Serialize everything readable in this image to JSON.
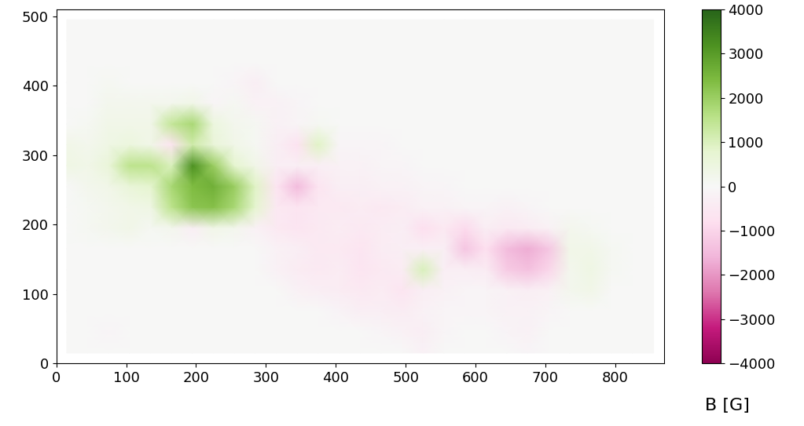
{
  "chart_data": {
    "type": "heatmap",
    "color": "PiYG",
    "x": [
      15,
      45,
      75,
      105,
      135,
      165,
      195,
      225,
      255,
      285,
      315,
      345,
      375,
      405,
      435,
      465,
      495,
      525,
      555,
      585,
      615,
      645,
      675,
      705,
      735,
      765,
      795,
      825,
      855
    ],
    "y": [
      15,
      45,
      75,
      105,
      135,
      165,
      195,
      225,
      255,
      285,
      315,
      345,
      375,
      405,
      435,
      465,
      495
    ],
    "cells": [
      [
        0,
        0,
        0,
        0,
        0,
        0,
        0,
        0,
        0,
        0,
        0,
        0,
        0,
        0,
        0,
        0,
        0,
        -200,
        0,
        0,
        0,
        0,
        -100,
        0,
        0,
        0,
        0,
        0,
        0
      ],
      [
        0,
        0,
        -100,
        0,
        0,
        0,
        0,
        0,
        0,
        0,
        0,
        0,
        0,
        0,
        0,
        -100,
        -200,
        -300,
        -100,
        0,
        0,
        -150,
        -200,
        0,
        0,
        0,
        0,
        0,
        0
      ],
      [
        0,
        0,
        0,
        0,
        0,
        0,
        0,
        0,
        0,
        0,
        0,
        0,
        0,
        -150,
        -300,
        -300,
        -400,
        -200,
        -100,
        -100,
        -100,
        -200,
        -200,
        -100,
        0,
        0,
        0,
        0,
        0
      ],
      [
        0,
        0,
        0,
        0,
        0,
        0,
        0,
        0,
        0,
        0,
        0,
        -200,
        -300,
        -400,
        -500,
        -400,
        -600,
        -300,
        -200,
        -100,
        -100,
        -200,
        -300,
        -200,
        200,
        300,
        0,
        0,
        0
      ],
      [
        0,
        0,
        0,
        0,
        0,
        0,
        0,
        0,
        0,
        0,
        -200,
        -400,
        -500,
        -400,
        -600,
        -500,
        -400,
        1000,
        -300,
        -300,
        -400,
        -1200,
        -1400,
        -1000,
        200,
        400,
        100,
        0,
        0
      ],
      [
        0,
        0,
        0,
        0,
        0,
        0,
        0,
        0,
        0,
        0,
        -200,
        -300,
        -500,
        -500,
        -600,
        -400,
        -300,
        -300,
        -300,
        -1300,
        -800,
        -1500,
        -1700,
        -1300,
        300,
        300,
        100,
        0,
        0
      ],
      [
        0,
        100,
        200,
        300,
        100,
        200,
        -300,
        300,
        200,
        -200,
        -500,
        -600,
        -500,
        -400,
        -500,
        -400,
        -300,
        -800,
        -500,
        -900,
        -300,
        -500,
        -400,
        -200,
        200,
        100,
        0,
        0,
        0
      ],
      [
        0,
        100,
        200,
        300,
        400,
        1500,
        2200,
        2300,
        1800,
        800,
        -500,
        -600,
        -500,
        -500,
        -400,
        -500,
        -400,
        -200,
        -200,
        -100,
        -100,
        -200,
        -100,
        0,
        0,
        0,
        0,
        0,
        0
      ],
      [
        0,
        200,
        300,
        600,
        800,
        1800,
        2400,
        2600,
        2000,
        900,
        -600,
        -1500,
        -600,
        -300,
        -300,
        -200,
        -200,
        -100,
        -100,
        0,
        0,
        0,
        0,
        0,
        0,
        0,
        0,
        0,
        0
      ],
      [
        400,
        300,
        600,
        1500,
        1500,
        1000,
        3200,
        2000,
        800,
        300,
        -300,
        -300,
        -300,
        -200,
        -200,
        -100,
        -100,
        0,
        0,
        0,
        0,
        0,
        0,
        0,
        0,
        0,
        0,
        0,
        0
      ],
      [
        300,
        200,
        400,
        500,
        300,
        -600,
        1200,
        600,
        300,
        100,
        -300,
        -700,
        900,
        -100,
        -100,
        -100,
        0,
        0,
        0,
        0,
        0,
        0,
        0,
        0,
        0,
        0,
        0,
        0,
        0
      ],
      [
        0,
        100,
        300,
        300,
        300,
        1400,
        1800,
        500,
        200,
        100,
        -200,
        -100,
        100,
        0,
        0,
        0,
        0,
        0,
        0,
        0,
        0,
        0,
        0,
        0,
        0,
        0,
        0,
        0,
        0
      ],
      [
        0,
        0,
        200,
        200,
        200,
        200,
        300,
        -100,
        100,
        -200,
        -200,
        -100,
        0,
        0,
        0,
        0,
        0,
        0,
        0,
        0,
        0,
        0,
        0,
        0,
        0,
        0,
        0,
        0,
        0
      ],
      [
        0,
        0,
        100,
        0,
        0,
        0,
        0,
        0,
        -100,
        -300,
        0,
        0,
        0,
        0,
        0,
        0,
        0,
        0,
        0,
        0,
        0,
        0,
        0,
        0,
        0,
        0,
        0,
        0,
        0
      ],
      [
        0,
        0,
        0,
        0,
        0,
        0,
        0,
        0,
        0,
        0,
        0,
        0,
        0,
        0,
        0,
        0,
        0,
        0,
        0,
        0,
        0,
        0,
        0,
        0,
        0,
        0,
        0,
        0,
        0
      ],
      [
        0,
        0,
        0,
        0,
        0,
        0,
        0,
        0,
        0,
        0,
        0,
        0,
        0,
        0,
        0,
        0,
        0,
        0,
        0,
        0,
        0,
        0,
        0,
        0,
        0,
        0,
        0,
        0,
        0
      ],
      [
        0,
        0,
        0,
        0,
        0,
        0,
        0,
        0,
        0,
        0,
        0,
        0,
        0,
        0,
        0,
        0,
        0,
        0,
        0,
        0,
        0,
        0,
        0,
        0,
        0,
        0,
        0,
        0,
        0
      ]
    ],
    "xlim": [
      0,
      870
    ],
    "ylim": [
      0,
      510
    ],
    "xticks": [
      0,
      100,
      200,
      300,
      400,
      500,
      600,
      700,
      800
    ],
    "yticks": [
      0,
      100,
      200,
      300,
      400,
      500
    ],
    "colorbar": {
      "label": "B [G]",
      "range": [
        -4000,
        4000
      ],
      "ticks": [
        {
          "value": -4000,
          "label": "−4000"
        },
        {
          "value": -3000,
          "label": "−3000"
        },
        {
          "value": -2000,
          "label": "−2000"
        },
        {
          "value": -1000,
          "label": "−1000"
        },
        0,
        1000,
        2000,
        3000,
        4000
      ]
    }
  }
}
